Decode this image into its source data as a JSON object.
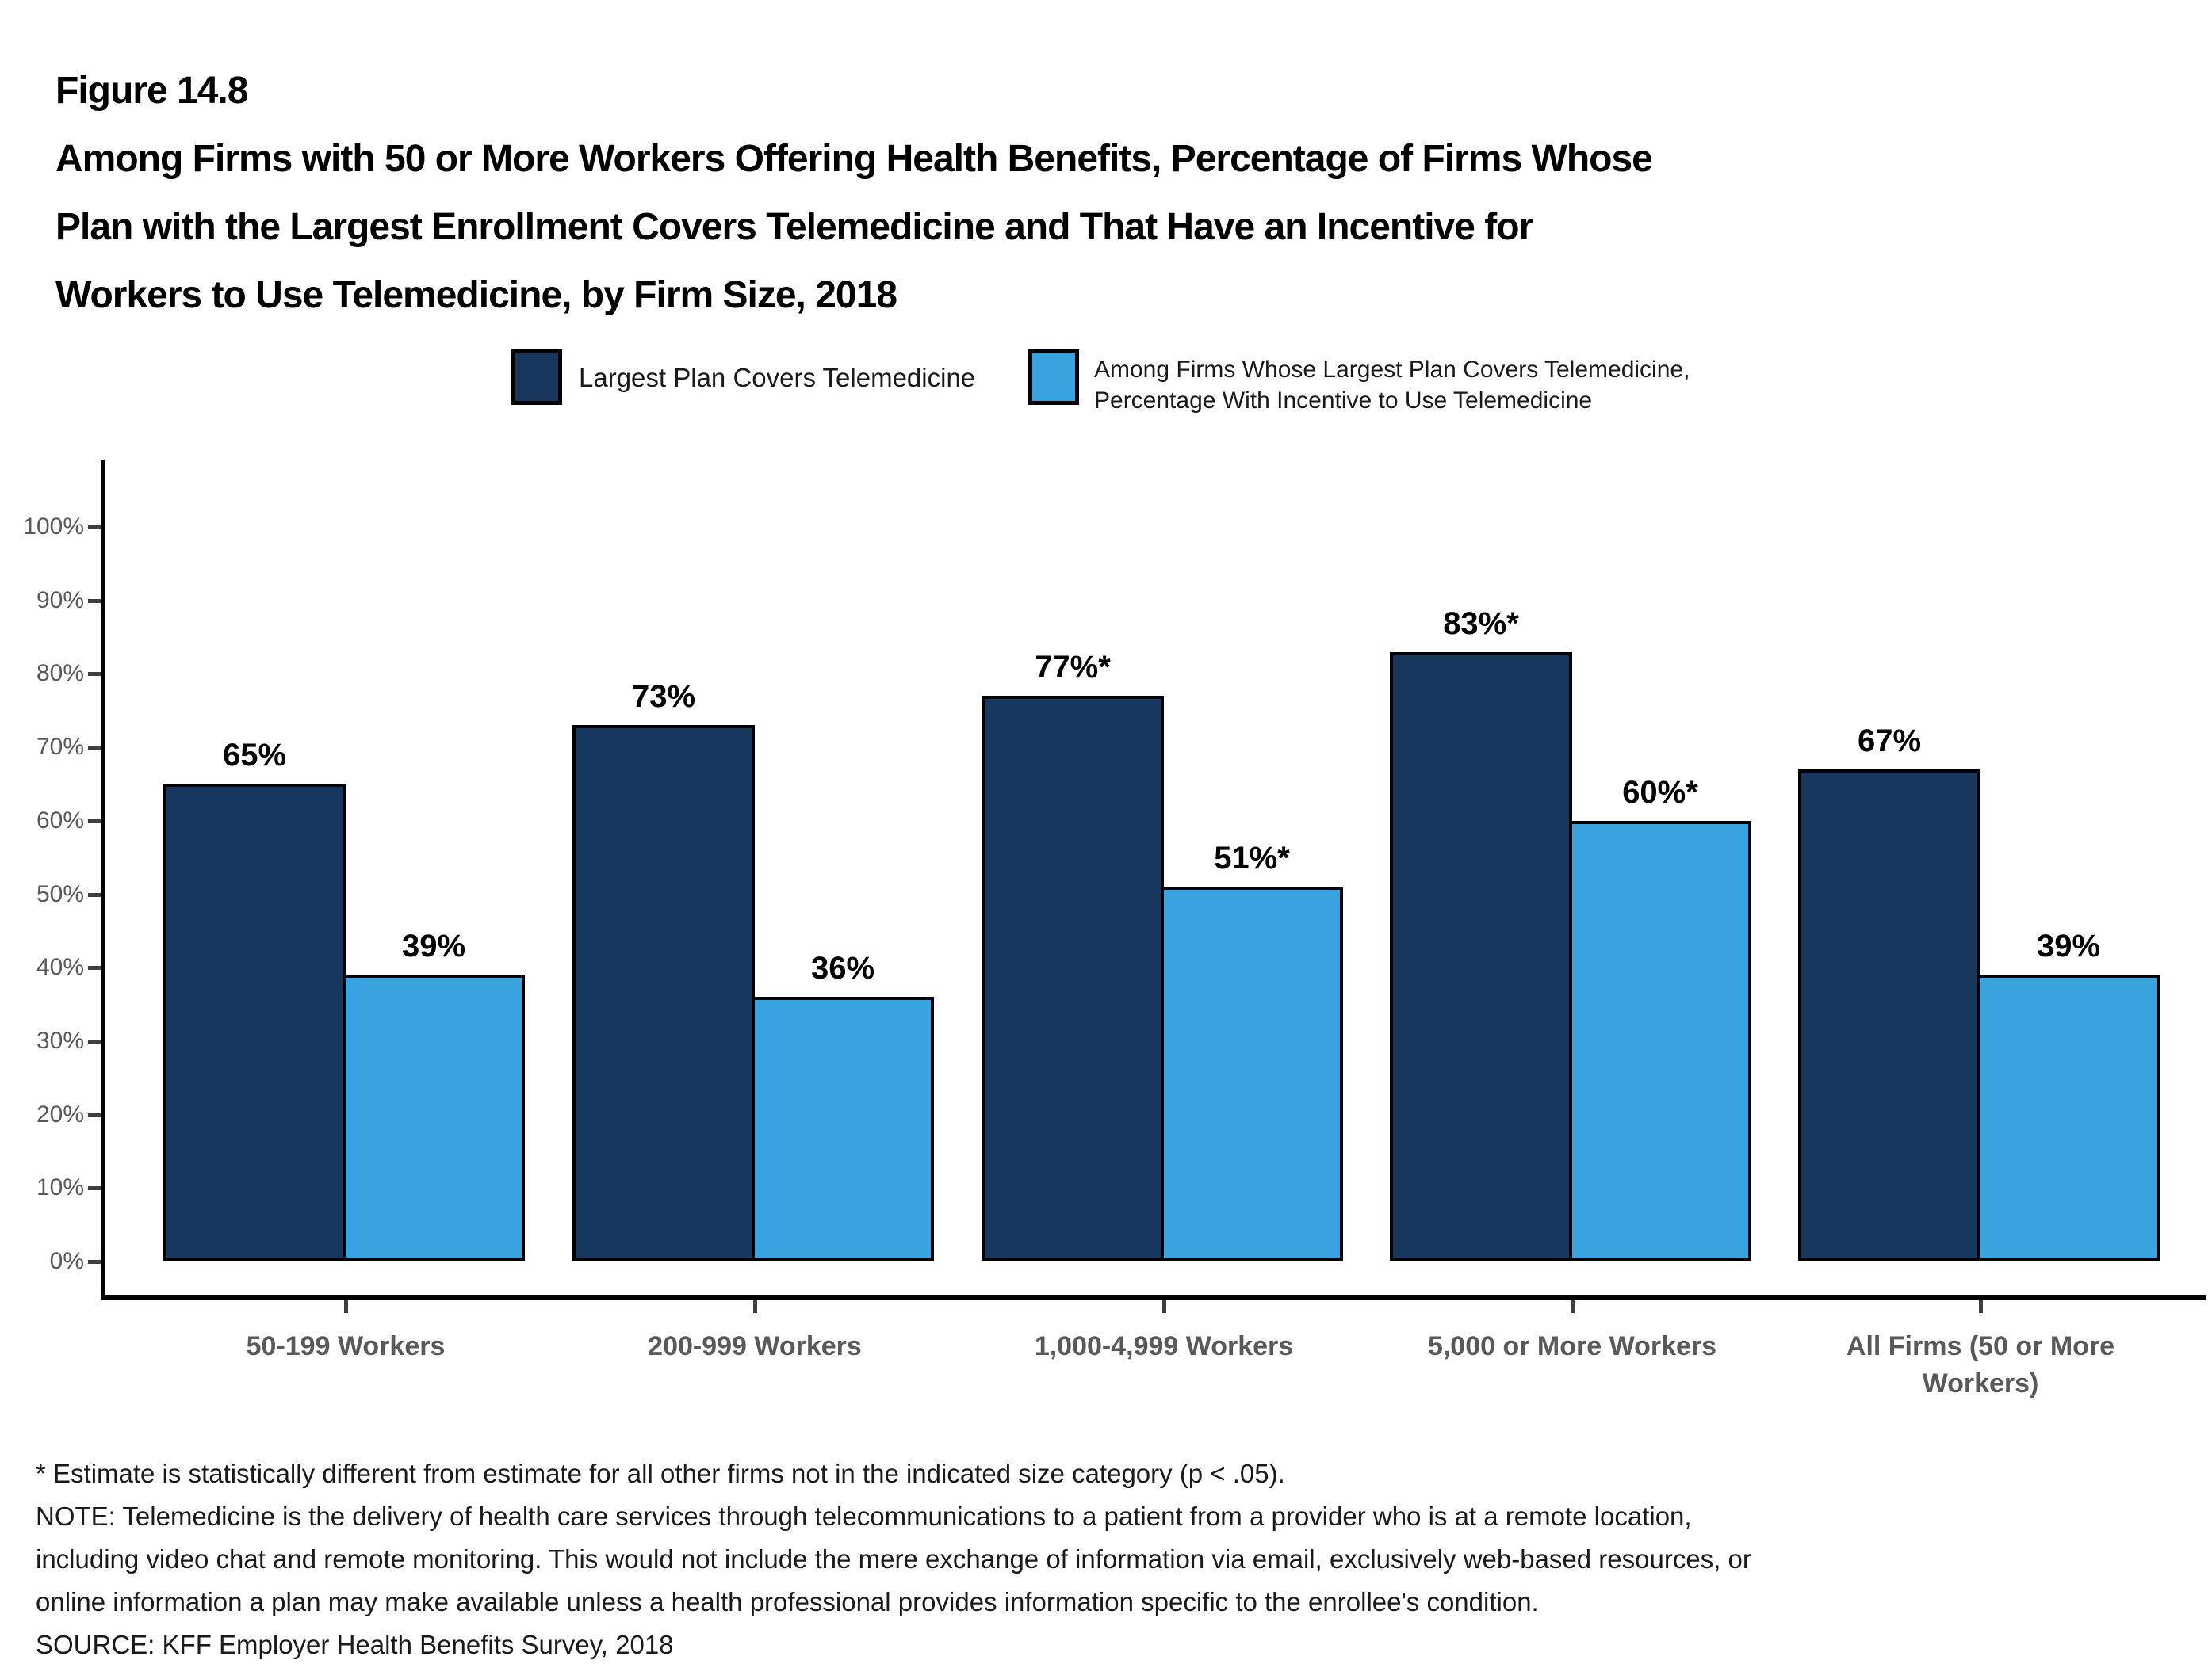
{
  "header": {
    "figure_label": "Figure 14.8",
    "title_lines": [
      "Among Firms with 50 or More Workers Offering Health Benefits, Percentage of Firms Whose",
      "Plan with the Largest Enrollment Covers Telemedicine and That Have an Incentive for",
      "Workers to Use Telemedicine, by Firm Size, 2018"
    ]
  },
  "legend": {
    "items": [
      {
        "label_lines": [
          "Largest Plan Covers Telemedicine"
        ],
        "color": "#17375e"
      },
      {
        "label_lines": [
          "Among Firms Whose Largest Plan Covers Telemedicine,",
          "Percentage With Incentive to Use Telemedicine"
        ],
        "color": "#37a4e0"
      }
    ]
  },
  "chart_data": {
    "type": "bar",
    "categories": [
      "50-199 Workers",
      "200-999 Workers",
      "1,000-4,999 Workers",
      "5,000 or More Workers",
      "All Firms (50 or More Workers)"
    ],
    "series": [
      {
        "name": "Largest Plan Covers Telemedicine",
        "color": "#17375e",
        "values": [
          65,
          73,
          77,
          83,
          67
        ],
        "labels": [
          "65%",
          "73%",
          "77%*",
          "83%*",
          "67%"
        ]
      },
      {
        "name": "Among Firms Whose Largest Plan Covers Telemedicine, Percentage With Incentive to Use Telemedicine",
        "color": "#37a4e0",
        "values": [
          39,
          36,
          51,
          60,
          39
        ],
        "labels": [
          "39%",
          "36%",
          "51%*",
          "60%*",
          "39%"
        ]
      }
    ],
    "title": "Among Firms with 50 or More Workers Offering Health Benefits, Percentage of Firms Whose Plan with the Largest Enrollment Covers Telemedicine and That Have an Incentive for Workers to Use Telemedicine, by Firm Size, 2018",
    "xlabel": "",
    "ylabel": "",
    "ylim": [
      0,
      100
    ],
    "ytick_labels": [
      "0%",
      "10%",
      "20%",
      "30%",
      "40%",
      "50%",
      "60%",
      "70%",
      "80%",
      "90%",
      "100%"
    ],
    "grid": false,
    "legend_position": "top"
  },
  "footnotes": {
    "lines": [
      "* Estimate is statistically different from estimate for all other firms not in the indicated size category (p < .05).",
      "NOTE: Telemedicine is the delivery of health care services through telecommunications to a patient from a provider who is at a remote location,",
      "including video chat and remote monitoring. This would not include the mere exchange of information via email, exclusively web-based resources, or",
      "online information a plan may make available unless a health professional provides information specific to the enrollee's condition.",
      "SOURCE: KFF Employer Health Benefits Survey, 2018"
    ]
  }
}
